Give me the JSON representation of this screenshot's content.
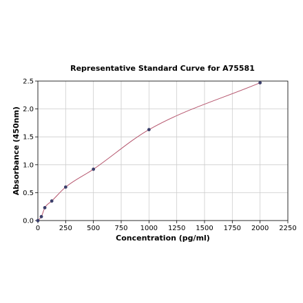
{
  "chart_data": {
    "type": "scatter",
    "title": "Representative Standard Curve for A75581",
    "xlabel": "Concentration (pg/ml)",
    "ylabel": "Absorbance (450nm)",
    "xlim": [
      0,
      2250
    ],
    "ylim": [
      0,
      2.5
    ],
    "xticks": [
      0,
      250,
      500,
      750,
      1000,
      1250,
      1500,
      1750,
      2000,
      2250
    ],
    "yticks": [
      0.0,
      0.5,
      1.0,
      1.5,
      2.0,
      2.5
    ],
    "xtick_labels": [
      "0",
      "250",
      "500",
      "750",
      "1000",
      "1250",
      "1500",
      "1750",
      "2000",
      "2250"
    ],
    "ytick_labels": [
      "0.0",
      "0.5",
      "1.0",
      "1.5",
      "2.0",
      "2.5"
    ],
    "grid": true,
    "point_color": "#3b3f6b",
    "curve_color": "#b5546c",
    "points": [
      {
        "x": 0,
        "y": 0.0
      },
      {
        "x": 31.25,
        "y": 0.07
      },
      {
        "x": 62.5,
        "y": 0.23
      },
      {
        "x": 125,
        "y": 0.35
      },
      {
        "x": 250,
        "y": 0.6
      },
      {
        "x": 500,
        "y": 0.92
      },
      {
        "x": 1000,
        "y": 1.63
      },
      {
        "x": 2000,
        "y": 2.47
      }
    ]
  }
}
